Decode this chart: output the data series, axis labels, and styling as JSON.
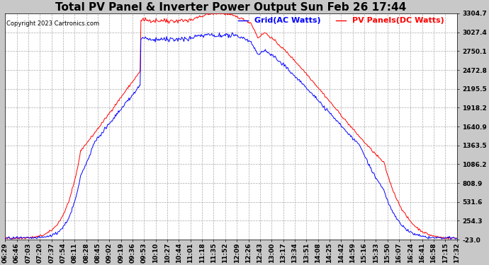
{
  "title": "Total PV Panel & Inverter Power Output Sun Feb 26 17:44",
  "copyright": "Copyright 2023 Cartronics.com",
  "legend_ac": "Grid(AC Watts)",
  "legend_dc": "PV Panels(DC Watts)",
  "color_ac": "blue",
  "color_dc": "red",
  "yticks": [
    -23.0,
    254.3,
    531.6,
    808.9,
    1086.2,
    1363.5,
    1640.9,
    1918.2,
    2195.5,
    2472.8,
    2750.1,
    3027.4,
    3304.7
  ],
  "ylim": [
    -23.0,
    3304.7
  ],
  "background_color": "#c8c8c8",
  "plot_bg_color": "#ffffff",
  "grid_color": "#aaaaaa",
  "title_fontsize": 11,
  "tick_fontsize": 6.5,
  "legend_fontsize": 8,
  "xtick_labels": [
    "06:29",
    "06:46",
    "07:03",
    "07:20",
    "07:37",
    "07:54",
    "08:11",
    "08:28",
    "08:45",
    "09:02",
    "09:19",
    "09:36",
    "09:53",
    "10:10",
    "10:27",
    "10:44",
    "11:01",
    "11:18",
    "11:35",
    "11:52",
    "12:09",
    "12:26",
    "12:43",
    "13:00",
    "13:17",
    "13:34",
    "13:51",
    "14:08",
    "14:25",
    "14:42",
    "14:59",
    "15:16",
    "15:33",
    "15:50",
    "16:07",
    "16:24",
    "16:41",
    "16:58",
    "17:15",
    "17:32"
  ]
}
